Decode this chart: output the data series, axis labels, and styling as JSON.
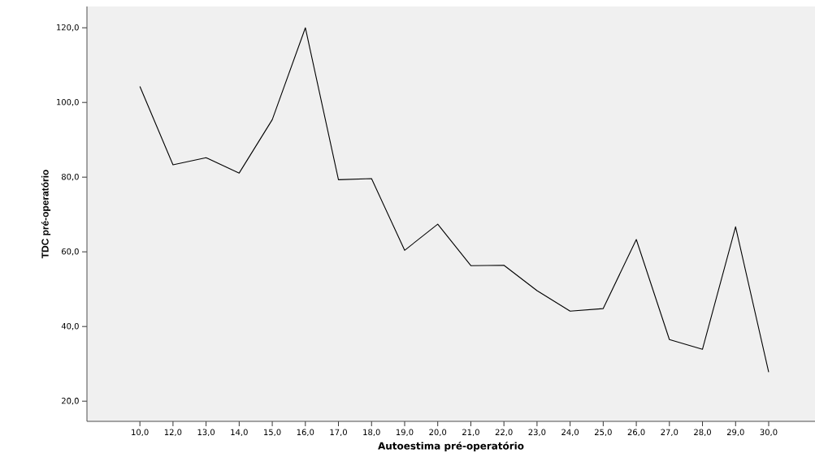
{
  "chart_data": {
    "type": "line",
    "xlabel": "Autoestima pré-operatório",
    "ylabel": "TDC pré-operatório",
    "categories": [
      "10,0",
      "12,0",
      "13,0",
      "14,0",
      "15,0",
      "16,0",
      "17,0",
      "18,0",
      "19,0",
      "20,0",
      "21,0",
      "22,0",
      "23,0",
      "24,0",
      "25,0",
      "26,0",
      "27,0",
      "28,0",
      "29,0",
      "30,0"
    ],
    "series": [
      {
        "color": "#000000",
        "values": [
          104.3,
          83.3,
          85.2,
          81.1,
          95.4,
          120.0,
          79.3,
          79.6,
          60.4,
          67.4,
          56.3,
          56.4,
          49.6,
          44.1,
          44.8,
          63.3,
          36.5,
          33.9,
          66.7,
          27.8
        ]
      }
    ],
    "ylim": [
      14.6,
      125.7
    ],
    "yticks": [
      {
        "value": 20,
        "label": "20,0"
      },
      {
        "value": 40,
        "label": "40,0"
      },
      {
        "value": 60,
        "label": "60,0"
      },
      {
        "value": 80,
        "label": "80,0"
      },
      {
        "value": 100,
        "label": "100,0"
      },
      {
        "value": 120,
        "label": "120,0"
      }
    ],
    "grid": false,
    "marker": "none",
    "line_style": "solid"
  }
}
